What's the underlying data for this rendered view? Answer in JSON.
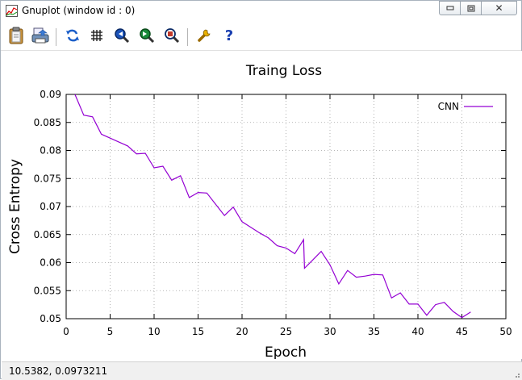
{
  "window": {
    "title": "Gnuplot (window id : 0)",
    "controls": {
      "minimize": "▭",
      "maximize": "⧉",
      "close": "✕"
    }
  },
  "toolbar": {
    "items": [
      {
        "icon": "clipboard-icon",
        "tooltip": ""
      },
      {
        "icon": "print-icon",
        "tooltip": ""
      },
      {
        "icon": "replot-icon",
        "tooltip": ""
      },
      {
        "icon": "grid-icon",
        "tooltip": ""
      },
      {
        "icon": "zoom-previous-icon",
        "tooltip": ""
      },
      {
        "icon": "zoom-next-icon",
        "tooltip": ""
      },
      {
        "icon": "zoom-unzoom-icon",
        "tooltip": ""
      },
      {
        "icon": "options-wrench-icon",
        "tooltip": ""
      },
      {
        "icon": "help-icon",
        "tooltip": ""
      }
    ]
  },
  "status": {
    "coords": "10.5382,  0.0973211"
  },
  "colors": {
    "series": "#9400d3",
    "grid": "#a0a0a0",
    "axis": "#000000"
  },
  "chart_data": {
    "type": "line",
    "title": "Traing Loss",
    "xlabel": "Epoch",
    "ylabel": "Cross Entropy",
    "xlim": [
      0,
      50
    ],
    "ylim": [
      0.05,
      0.09
    ],
    "xticks": [
      "0",
      "5",
      "10",
      "15",
      "20",
      "25",
      "30",
      "35",
      "40",
      "45",
      "50"
    ],
    "yticks": [
      "0.05",
      "0.055",
      "0.06",
      "0.065",
      "0.07",
      "0.075",
      "0.08",
      "0.085",
      "0.09"
    ],
    "grid": true,
    "legend": "top-right",
    "series": [
      {
        "name": "CNN",
        "x": [
          1,
          2,
          3,
          4,
          5,
          6,
          7,
          8,
          9,
          10,
          11,
          12,
          13,
          14,
          15,
          16,
          17,
          18,
          19,
          20,
          21,
          22,
          23,
          24,
          25,
          26,
          27,
          27.1,
          28,
          29,
          30,
          31,
          32,
          33,
          34,
          35,
          36,
          37,
          38,
          39,
          40,
          41,
          42,
          43,
          44,
          45,
          46
        ],
        "y": [
          0.09,
          0.0863,
          0.086,
          0.0829,
          0.0822,
          0.0815,
          0.0808,
          0.0794,
          0.0795,
          0.0769,
          0.0772,
          0.0747,
          0.0755,
          0.0716,
          0.0725,
          0.0724,
          0.0704,
          0.0684,
          0.0699,
          0.0673,
          0.0663,
          0.0653,
          0.0644,
          0.063,
          0.0626,
          0.0616,
          0.0641,
          0.059,
          0.0604,
          0.062,
          0.0596,
          0.0562,
          0.0586,
          0.0574,
          0.0576,
          0.0579,
          0.0578,
          0.0537,
          0.0546,
          0.0526,
          0.0526,
          0.0506,
          0.0525,
          0.0529,
          0.0513,
          0.0502,
          0.0512
        ]
      }
    ]
  }
}
